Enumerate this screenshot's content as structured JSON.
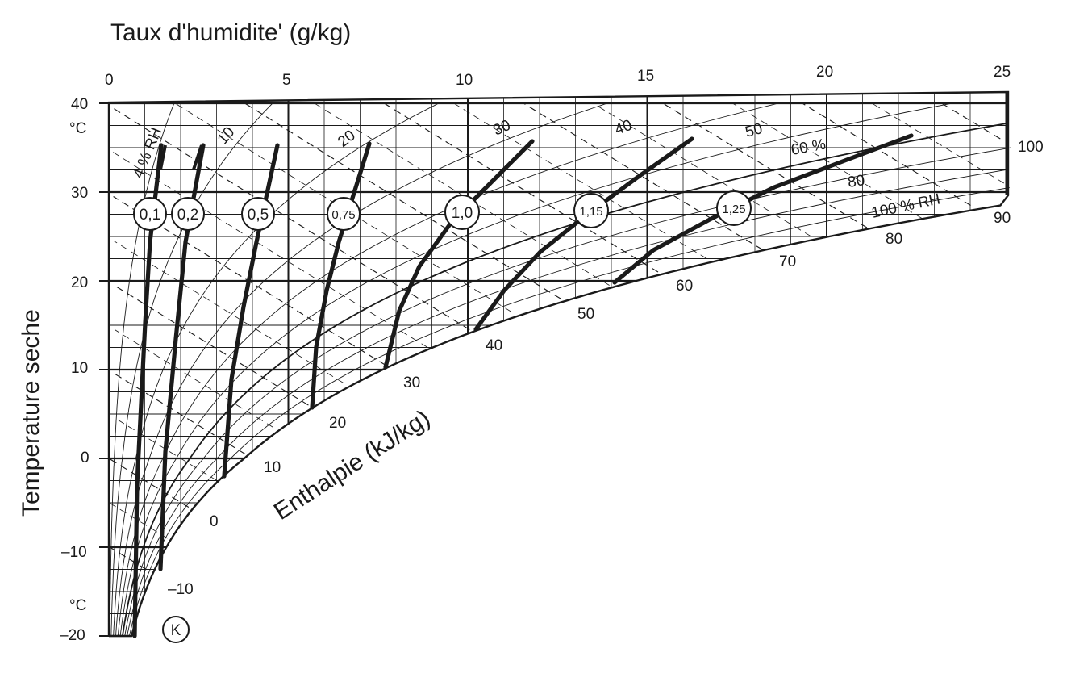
{
  "header": {
    "x_title": "Taux d'humidite' (g/kg)",
    "y_title": "Temperature seche",
    "enthalpy_title": "Enthalpie (kJ/kg)"
  },
  "chart_data": {
    "type": "psychrometric",
    "x_axis": {
      "label": "Taux d'humidite' (g/kg)",
      "range": [
        0,
        25
      ],
      "ticks": [
        "0",
        "5",
        "10",
        "15",
        "20",
        "25"
      ]
    },
    "y_axis": {
      "label": "Temperature seche",
      "unit_top": "°C",
      "unit_bottom": "°C",
      "range": [
        -20,
        40
      ],
      "ticks": [
        "40",
        "30",
        "20",
        "10",
        "0",
        "–10",
        "–20"
      ]
    },
    "enthalpy_labels": [
      "–10",
      "0",
      "10",
      "20",
      "30",
      "40",
      "50",
      "60",
      "70",
      "80",
      "90",
      "100"
    ],
    "rh_labels": [
      "4 % RH",
      "10",
      "20",
      "30",
      "40",
      "50",
      "60 %",
      "80",
      "100 % RH"
    ],
    "density_markers": [
      "0,1",
      "0,2",
      "0,5",
      "0,75",
      "1,0",
      "1,15",
      "1,25"
    ],
    "point_marker": "K",
    "colors": {
      "ink": "#1a1a1a",
      "background": "#ffffff"
    }
  }
}
